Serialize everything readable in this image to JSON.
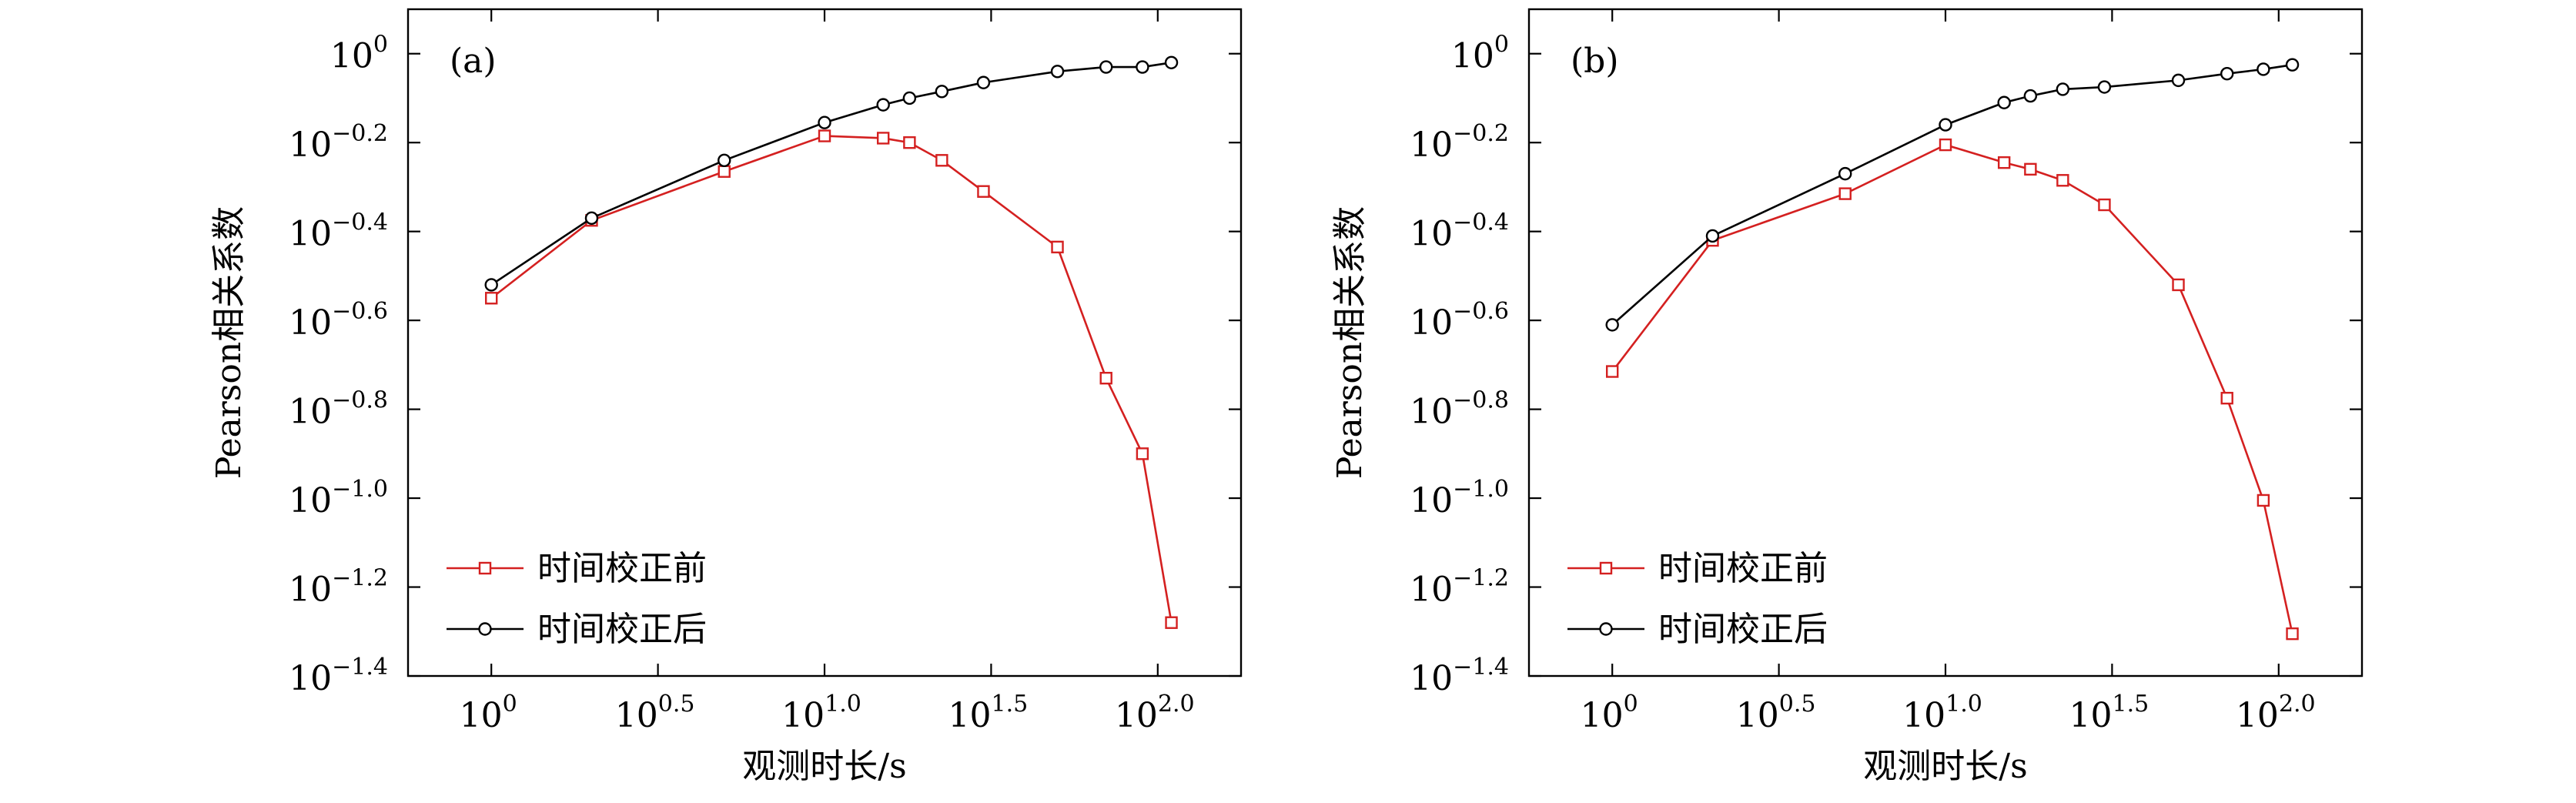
{
  "chart_data": [
    {
      "type": "line",
      "panel_label": "(a)",
      "xlabel": "观测时长/s",
      "ylabel": "Pearson相关系数",
      "xscale": "log",
      "yscale": "log",
      "xlim_exp": [
        -0.25,
        2.25
      ],
      "ylim_exp": [
        -1.4,
        0.1
      ],
      "x_ticks": [
        {
          "base": "10",
          "exp": "0"
        },
        {
          "base": "10",
          "exp": "0.5"
        },
        {
          "base": "10",
          "exp": "1.0"
        },
        {
          "base": "10",
          "exp": "1.5"
        },
        {
          "base": "10",
          "exp": "2.0"
        }
      ],
      "y_ticks": [
        {
          "base": "10",
          "exp": "0"
        },
        {
          "base": "10",
          "exp": "−0.2"
        },
        {
          "base": "10",
          "exp": "−0.4"
        },
        {
          "base": "10",
          "exp": "−0.6"
        },
        {
          "base": "10",
          "exp": "−0.8"
        },
        {
          "base": "10",
          "exp": "−1.0"
        },
        {
          "base": "10",
          "exp": "−1.2"
        },
        {
          "base": "10",
          "exp": "−1.4"
        }
      ],
      "legend_position": "lower-left",
      "series": [
        {
          "name": "时间校正前",
          "color": "#d42020",
          "marker": "square",
          "x_exp": [
            0,
            0.301,
            0.699,
            1.0,
            1.176,
            1.255,
            1.352,
            1.477,
            1.699,
            1.845,
            1.954,
            2.041
          ],
          "y_exp": [
            -0.55,
            -0.375,
            -0.265,
            -0.185,
            -0.19,
            -0.2,
            -0.24,
            -0.31,
            -0.435,
            -0.73,
            -0.9,
            -1.28
          ]
        },
        {
          "name": "时间校正后",
          "color": "#000000",
          "marker": "circle",
          "x_exp": [
            0,
            0.301,
            0.699,
            1.0,
            1.176,
            1.255,
            1.352,
            1.477,
            1.699,
            1.845,
            1.954,
            2.041
          ],
          "y_exp": [
            -0.52,
            -0.37,
            -0.24,
            -0.155,
            -0.115,
            -0.1,
            -0.085,
            -0.065,
            -0.04,
            -0.03,
            -0.03,
            -0.02
          ]
        }
      ]
    },
    {
      "type": "line",
      "panel_label": "(b)",
      "xlabel": "观测时长/s",
      "ylabel": "Pearson相关系数",
      "xscale": "log",
      "yscale": "log",
      "xlim_exp": [
        -0.25,
        2.25
      ],
      "ylim_exp": [
        -1.4,
        0.1
      ],
      "x_ticks": [
        {
          "base": "10",
          "exp": "0"
        },
        {
          "base": "10",
          "exp": "0.5"
        },
        {
          "base": "10",
          "exp": "1.0"
        },
        {
          "base": "10",
          "exp": "1.5"
        },
        {
          "base": "10",
          "exp": "2.0"
        }
      ],
      "y_ticks": [
        {
          "base": "10",
          "exp": "0"
        },
        {
          "base": "10",
          "exp": "−0.2"
        },
        {
          "base": "10",
          "exp": "−0.4"
        },
        {
          "base": "10",
          "exp": "−0.6"
        },
        {
          "base": "10",
          "exp": "−0.8"
        },
        {
          "base": "10",
          "exp": "−1.0"
        },
        {
          "base": "10",
          "exp": "−1.2"
        },
        {
          "base": "10",
          "exp": "−1.4"
        }
      ],
      "legend_position": "lower-left",
      "series": [
        {
          "name": "时间校正前",
          "color": "#d42020",
          "marker": "square",
          "x_exp": [
            0,
            0.301,
            0.699,
            1.0,
            1.176,
            1.255,
            1.352,
            1.477,
            1.699,
            1.845,
            1.954,
            2.041
          ],
          "y_exp": [
            -0.715,
            -0.42,
            -0.315,
            -0.205,
            -0.245,
            -0.26,
            -0.285,
            -0.34,
            -0.52,
            -0.775,
            -1.005,
            -1.305
          ]
        },
        {
          "name": "时间校正后",
          "color": "#000000",
          "marker": "circle",
          "x_exp": [
            0,
            0.301,
            0.699,
            1.0,
            1.176,
            1.255,
            1.352,
            1.477,
            1.699,
            1.845,
            1.954,
            2.041
          ],
          "y_exp": [
            -0.61,
            -0.41,
            -0.27,
            -0.16,
            -0.11,
            -0.095,
            -0.08,
            -0.075,
            -0.06,
            -0.045,
            -0.035,
            -0.025
          ]
        }
      ]
    }
  ]
}
